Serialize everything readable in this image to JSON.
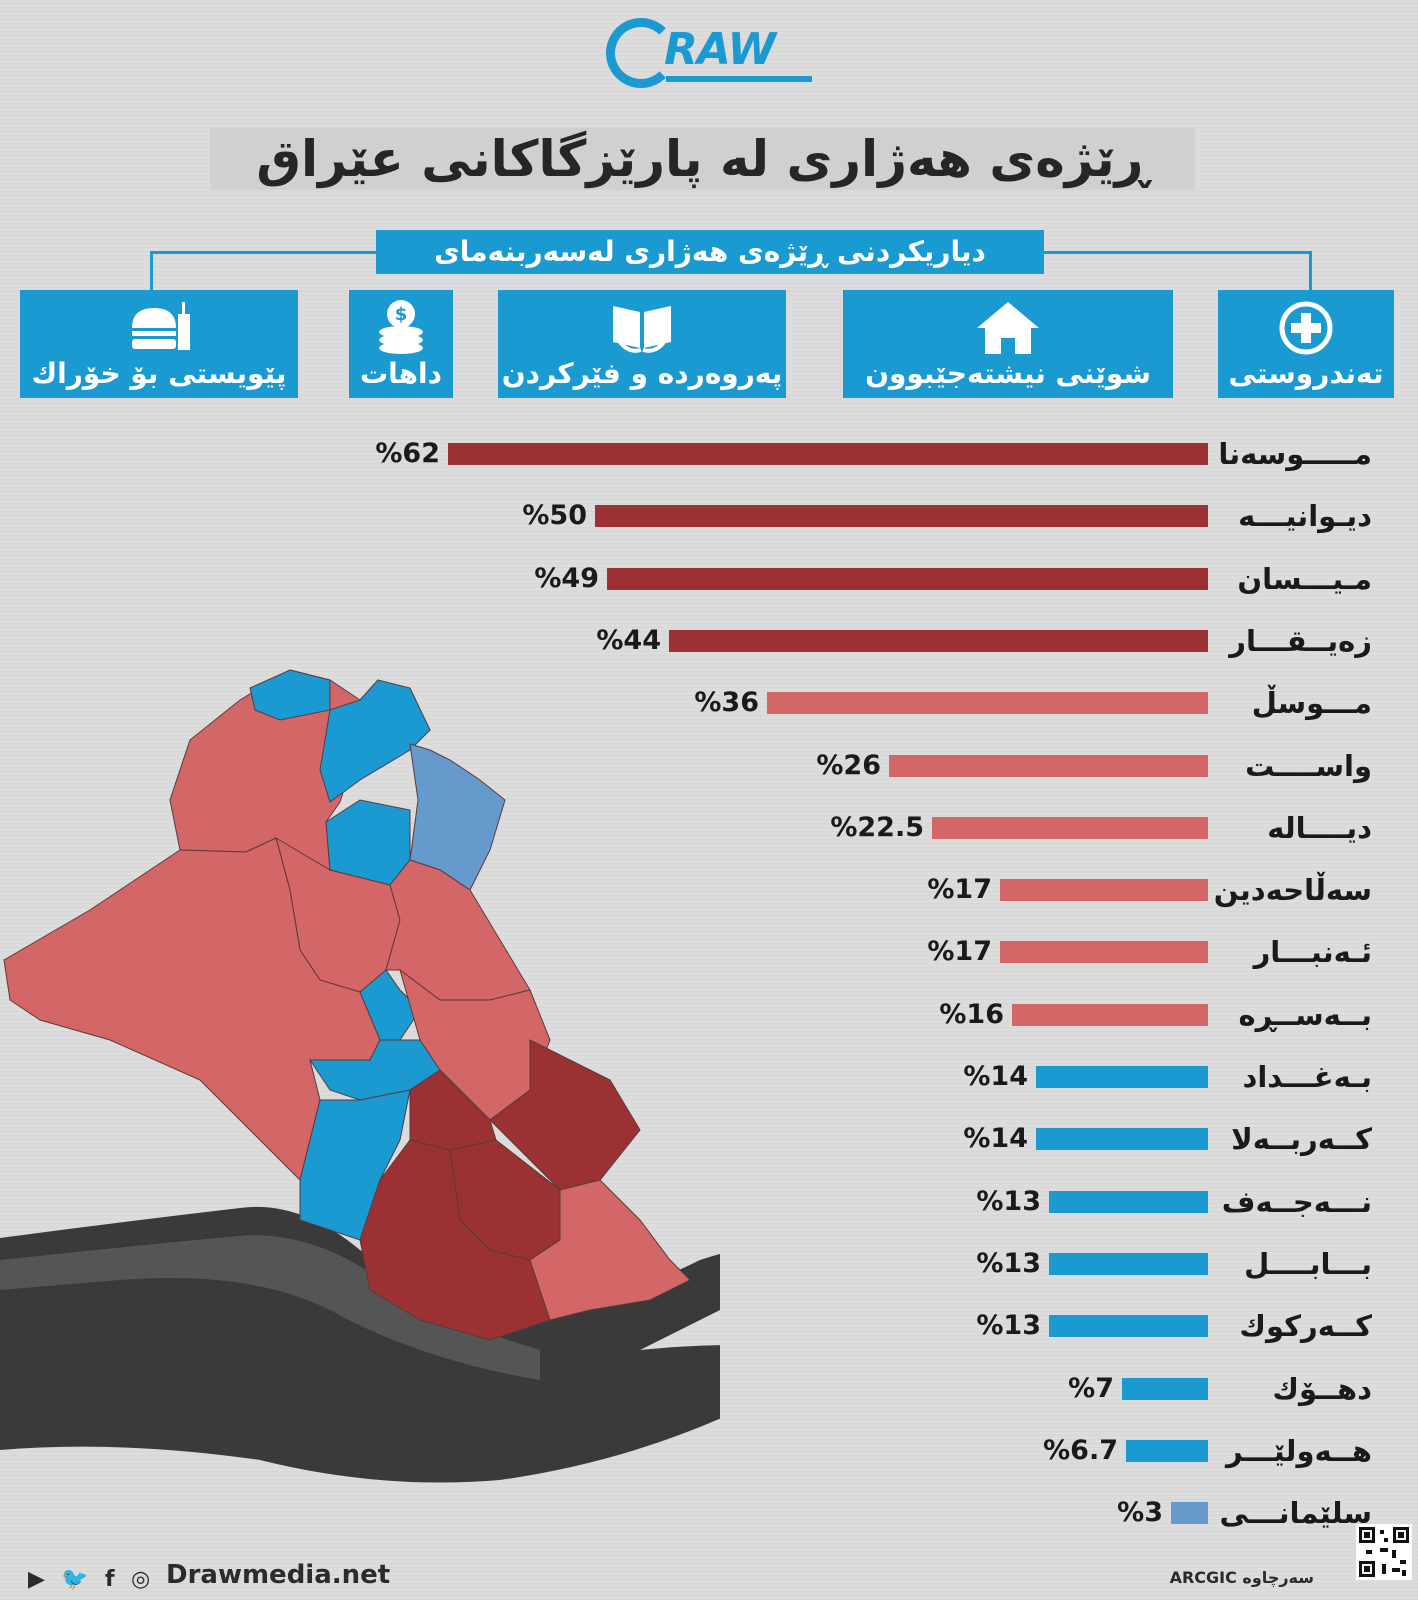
{
  "brand": {
    "logo_text": "RAW",
    "site": "Drawmedia.net",
    "blue": "#1b9ad2"
  },
  "title": "ڕێژەی هەژاری لە پارێزگاکانی عێراق",
  "criteria_heading": "دیاریکردنی ڕێژەی هەژاری لەسەربنەمای",
  "categories": [
    {
      "label": "تەندروستی",
      "icon": "health-cross-icon"
    },
    {
      "label": "شوێنی نیشتەجێبوون",
      "icon": "house-icon"
    },
    {
      "label": "پەروەردە و فێرکردن",
      "icon": "open-book-icon"
    },
    {
      "label": "داهات",
      "icon": "coins-icon"
    },
    {
      "label": "پێویستی بۆ خۆراك",
      "icon": "fast-food-icon"
    }
  ],
  "colors": {
    "high": "#9b3133",
    "medium": "#d36768",
    "low": "#1b9ad2",
    "lowest": "#6699cc"
  },
  "chart_data": {
    "type": "bar",
    "orientation": "horizontal",
    "value_format": "%{v}",
    "categories": [
      "مـــــوسەنا",
      "دیـوانیـــە",
      "مـیـــسان",
      "زەیــقـــار",
      "مـــوسڵ",
      "واســــت",
      "دیــــالە",
      "سەڵاحەدین",
      "ئـەنبـــار",
      "بــەســڕە",
      "بـەغـــداد",
      "کــەربــەلا",
      "نـــەجــەف",
      "بـــابــــل",
      "کــەرکوك",
      "دهــۆك",
      "هــەولێـــر",
      "سلێمانـــی"
    ],
    "values": [
      62,
      50,
      49,
      44,
      36,
      26,
      22.5,
      17,
      17,
      16,
      14,
      14,
      13,
      13,
      13,
      7,
      6.7,
      3
    ],
    "value_labels": [
      "%62",
      "%50",
      "%49",
      "%44",
      "%36",
      "%26",
      "%22.5",
      "%17",
      "%17",
      "%16",
      "%14",
      "%14",
      "%13",
      "%13",
      "%13",
      "%7",
      "%6.7",
      "%3"
    ],
    "bar_colors": [
      "high",
      "high",
      "high",
      "high",
      "medium",
      "medium",
      "medium",
      "medium",
      "medium",
      "medium",
      "low",
      "low",
      "low",
      "low",
      "low",
      "low",
      "low",
      "lowest"
    ],
    "xlim": [
      0,
      62
    ],
    "grid": false,
    "legend": "none"
  },
  "footer": {
    "social_icons": [
      "youtube-icon",
      "twitter-icon",
      "facebook-icon",
      "instagram-icon"
    ],
    "source": "سەرچاوە ARCGIC"
  }
}
